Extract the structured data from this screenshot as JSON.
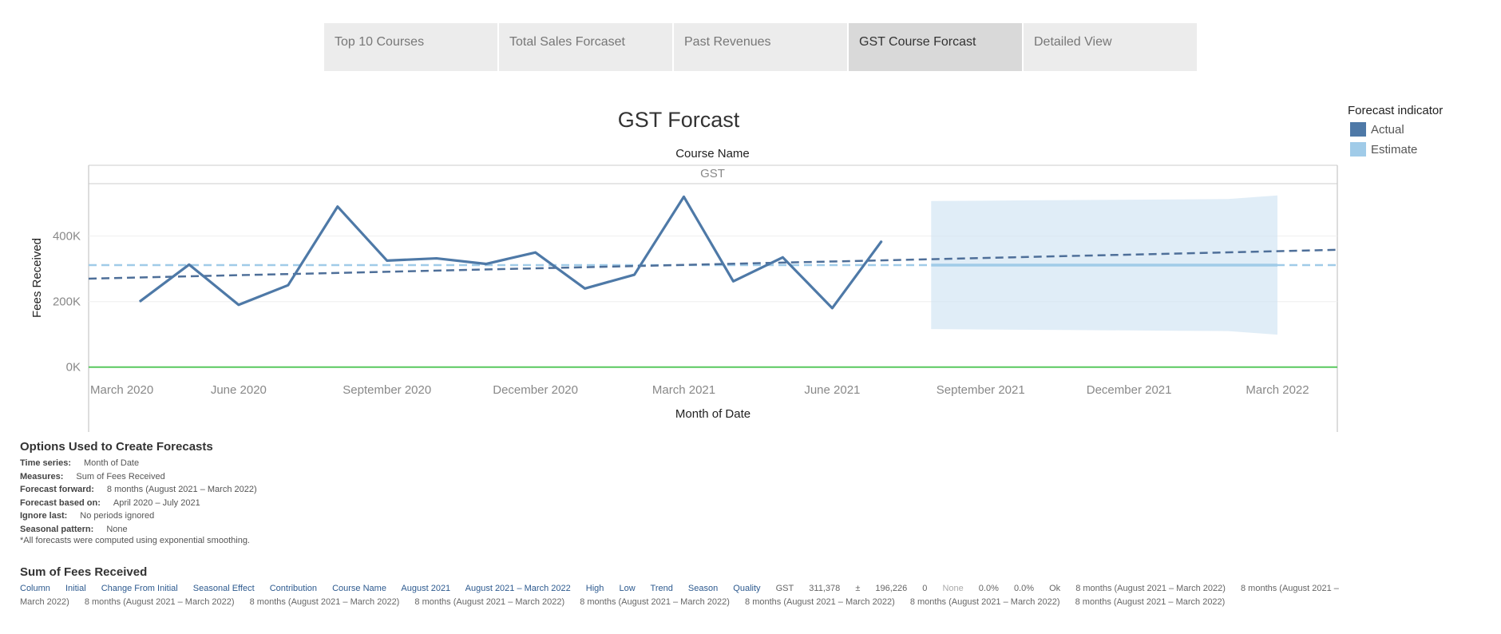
{
  "tabs": [
    {
      "label": "Top 10 Courses",
      "active": false
    },
    {
      "label": "Total Sales Forcaset",
      "active": false
    },
    {
      "label": "Past Revenues",
      "active": false
    },
    {
      "label": "GST Course Forcast",
      "active": true
    },
    {
      "label": "Detailed View",
      "active": false
    }
  ],
  "header": {
    "panel_header": "Course Name",
    "panel_value": "GST"
  },
  "legend": {
    "title": "Forecast indicator",
    "items": [
      {
        "label": "Actual",
        "color": "#4e79a7"
      },
      {
        "label": "Estimate",
        "color": "#a0cbe8"
      }
    ]
  },
  "chart_data": {
    "type": "line",
    "title": "GST Forcast",
    "xlabel": "Month of Date",
    "ylabel": "Fees Received",
    "x_tick_labels": [
      "March 2020",
      "June 2020",
      "September 2020",
      "December 2020",
      "March 2021",
      "June 2021",
      "September 2021",
      "December 2021",
      "March 2022"
    ],
    "y_tick_labels": [
      "0K",
      "200K",
      "400K"
    ],
    "ylim": [
      -25000,
      560000
    ],
    "grid": true,
    "series": [
      {
        "name": "Actual",
        "x": [
          "2020-04",
          "2020-05",
          "2020-06",
          "2020-07",
          "2020-08",
          "2020-09",
          "2020-10",
          "2020-11",
          "2020-12",
          "2021-01",
          "2021-02",
          "2021-03",
          "2021-04",
          "2021-05",
          "2021-06",
          "2021-07"
        ],
        "values": [
          200000,
          313000,
          190000,
          250000,
          490000,
          325000,
          332000,
          315000,
          350000,
          240000,
          282000,
          520000,
          262000,
          335000,
          180000,
          385000
        ]
      },
      {
        "name": "Estimate",
        "x": [
          "2021-08",
          "2021-09",
          "2021-10",
          "2021-11",
          "2021-12",
          "2022-01",
          "2022-02",
          "2022-03"
        ],
        "values": [
          311378,
          311378,
          311378,
          311378,
          311378,
          311378,
          311378,
          311378
        ],
        "band_upper": [
          507000,
          508000,
          509000,
          510000,
          511000,
          512000,
          513000,
          524000
        ],
        "band_lower": [
          116000,
          115000,
          114000,
          113000,
          112000,
          111000,
          110000,
          99000
        ]
      }
    ],
    "trend_lines": [
      {
        "name": "Actual trend",
        "from": 270000,
        "to": 358000
      },
      {
        "name": "Estimate average",
        "from": 311378,
        "to": 311378
      }
    ],
    "reference_value": 0
  },
  "options": {
    "title": "Options Used to Create Forecasts",
    "rows": [
      {
        "label": "Time series:",
        "value": "Month of Date"
      },
      {
        "label": "Measures:",
        "value": "Sum of Fees Received"
      },
      {
        "label": "Forecast forward:",
        "value": "8 months (August 2021 – March 2022)"
      },
      {
        "label": "Forecast based on:",
        "value": "April 2020 – July 2021"
      },
      {
        "label": "Ignore last:",
        "value": "No periods ignored"
      },
      {
        "label": "Seasonal pattern:",
        "value": "None"
      }
    ],
    "note": "*All forecasts were computed using exponential smoothing."
  },
  "sum": {
    "title": "Sum of Fees Received",
    "headers": [
      "Column",
      "Initial",
      "Change From Initial",
      "Seasonal Effect",
      "Contribution",
      "Course Name",
      "August 2021",
      "August 2021 – March 2022",
      "High",
      "Low",
      "Trend",
      "Season",
      "Quality"
    ],
    "values": [
      "GST",
      "311,378",
      "±",
      "196,226",
      "0",
      "None",
      "0.0%",
      "0.0%",
      "Ok"
    ],
    "repeated_value": "8 months (August 2021 – March 2022)",
    "repeat_count": 9
  }
}
